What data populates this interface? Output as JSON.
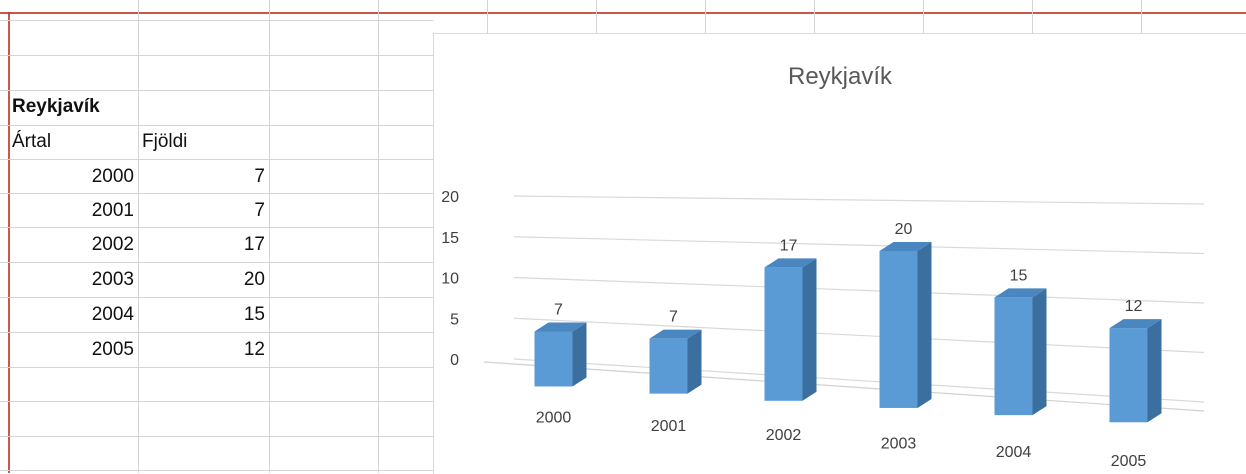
{
  "sheet": {
    "title": "Reykjavík",
    "header_year": "Ártal",
    "header_count": "Fjöldi",
    "rows": [
      {
        "year": "2000",
        "count": "7"
      },
      {
        "year": "2001",
        "count": "7"
      },
      {
        "year": "2002",
        "count": "17"
      },
      {
        "year": "2003",
        "count": "20"
      },
      {
        "year": "2004",
        "count": "15"
      },
      {
        "year": "2005",
        "count": "12"
      }
    ]
  },
  "chart_data": {
    "type": "bar",
    "title": "Reykjavík",
    "categories": [
      "2000",
      "2001",
      "2002",
      "2003",
      "2004",
      "2005"
    ],
    "values": [
      7,
      7,
      17,
      20,
      15,
      12
    ],
    "ylim": [
      0,
      20
    ],
    "yticks": [
      0,
      5,
      10,
      15,
      20
    ],
    "grid": true,
    "style": "3d-column",
    "bar_color": "#5b9bd5",
    "bar_side_color": "#3a6fa0",
    "bar_top_color": "#4a86c0"
  }
}
